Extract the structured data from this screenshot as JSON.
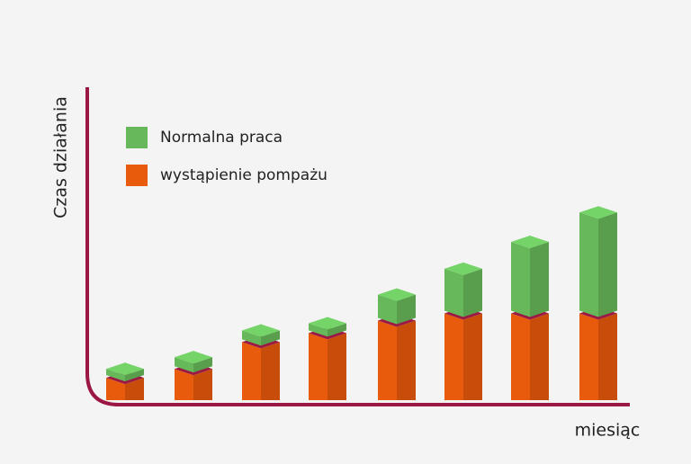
{
  "chart_data": {
    "type": "stacked_bar_3d",
    "y_label": "Czas działania",
    "x_label": "miesiąc",
    "categories": [
      null,
      null,
      null,
      null,
      null,
      null,
      null,
      null
    ],
    "series": [
      {
        "name": "Normalna praca",
        "color": "#66b85a",
        "values": [
          10,
          13,
          13,
          11,
          29,
          50,
          80,
          113
        ]
      },
      {
        "name": "wystąpienie pompażu",
        "color": "#e85a0c",
        "values": [
          25,
          35,
          65,
          75,
          89,
          97,
          97,
          97
        ]
      }
    ],
    "ylim": [
      0,
      350
    ],
    "axis_color": "#9b1744"
  }
}
